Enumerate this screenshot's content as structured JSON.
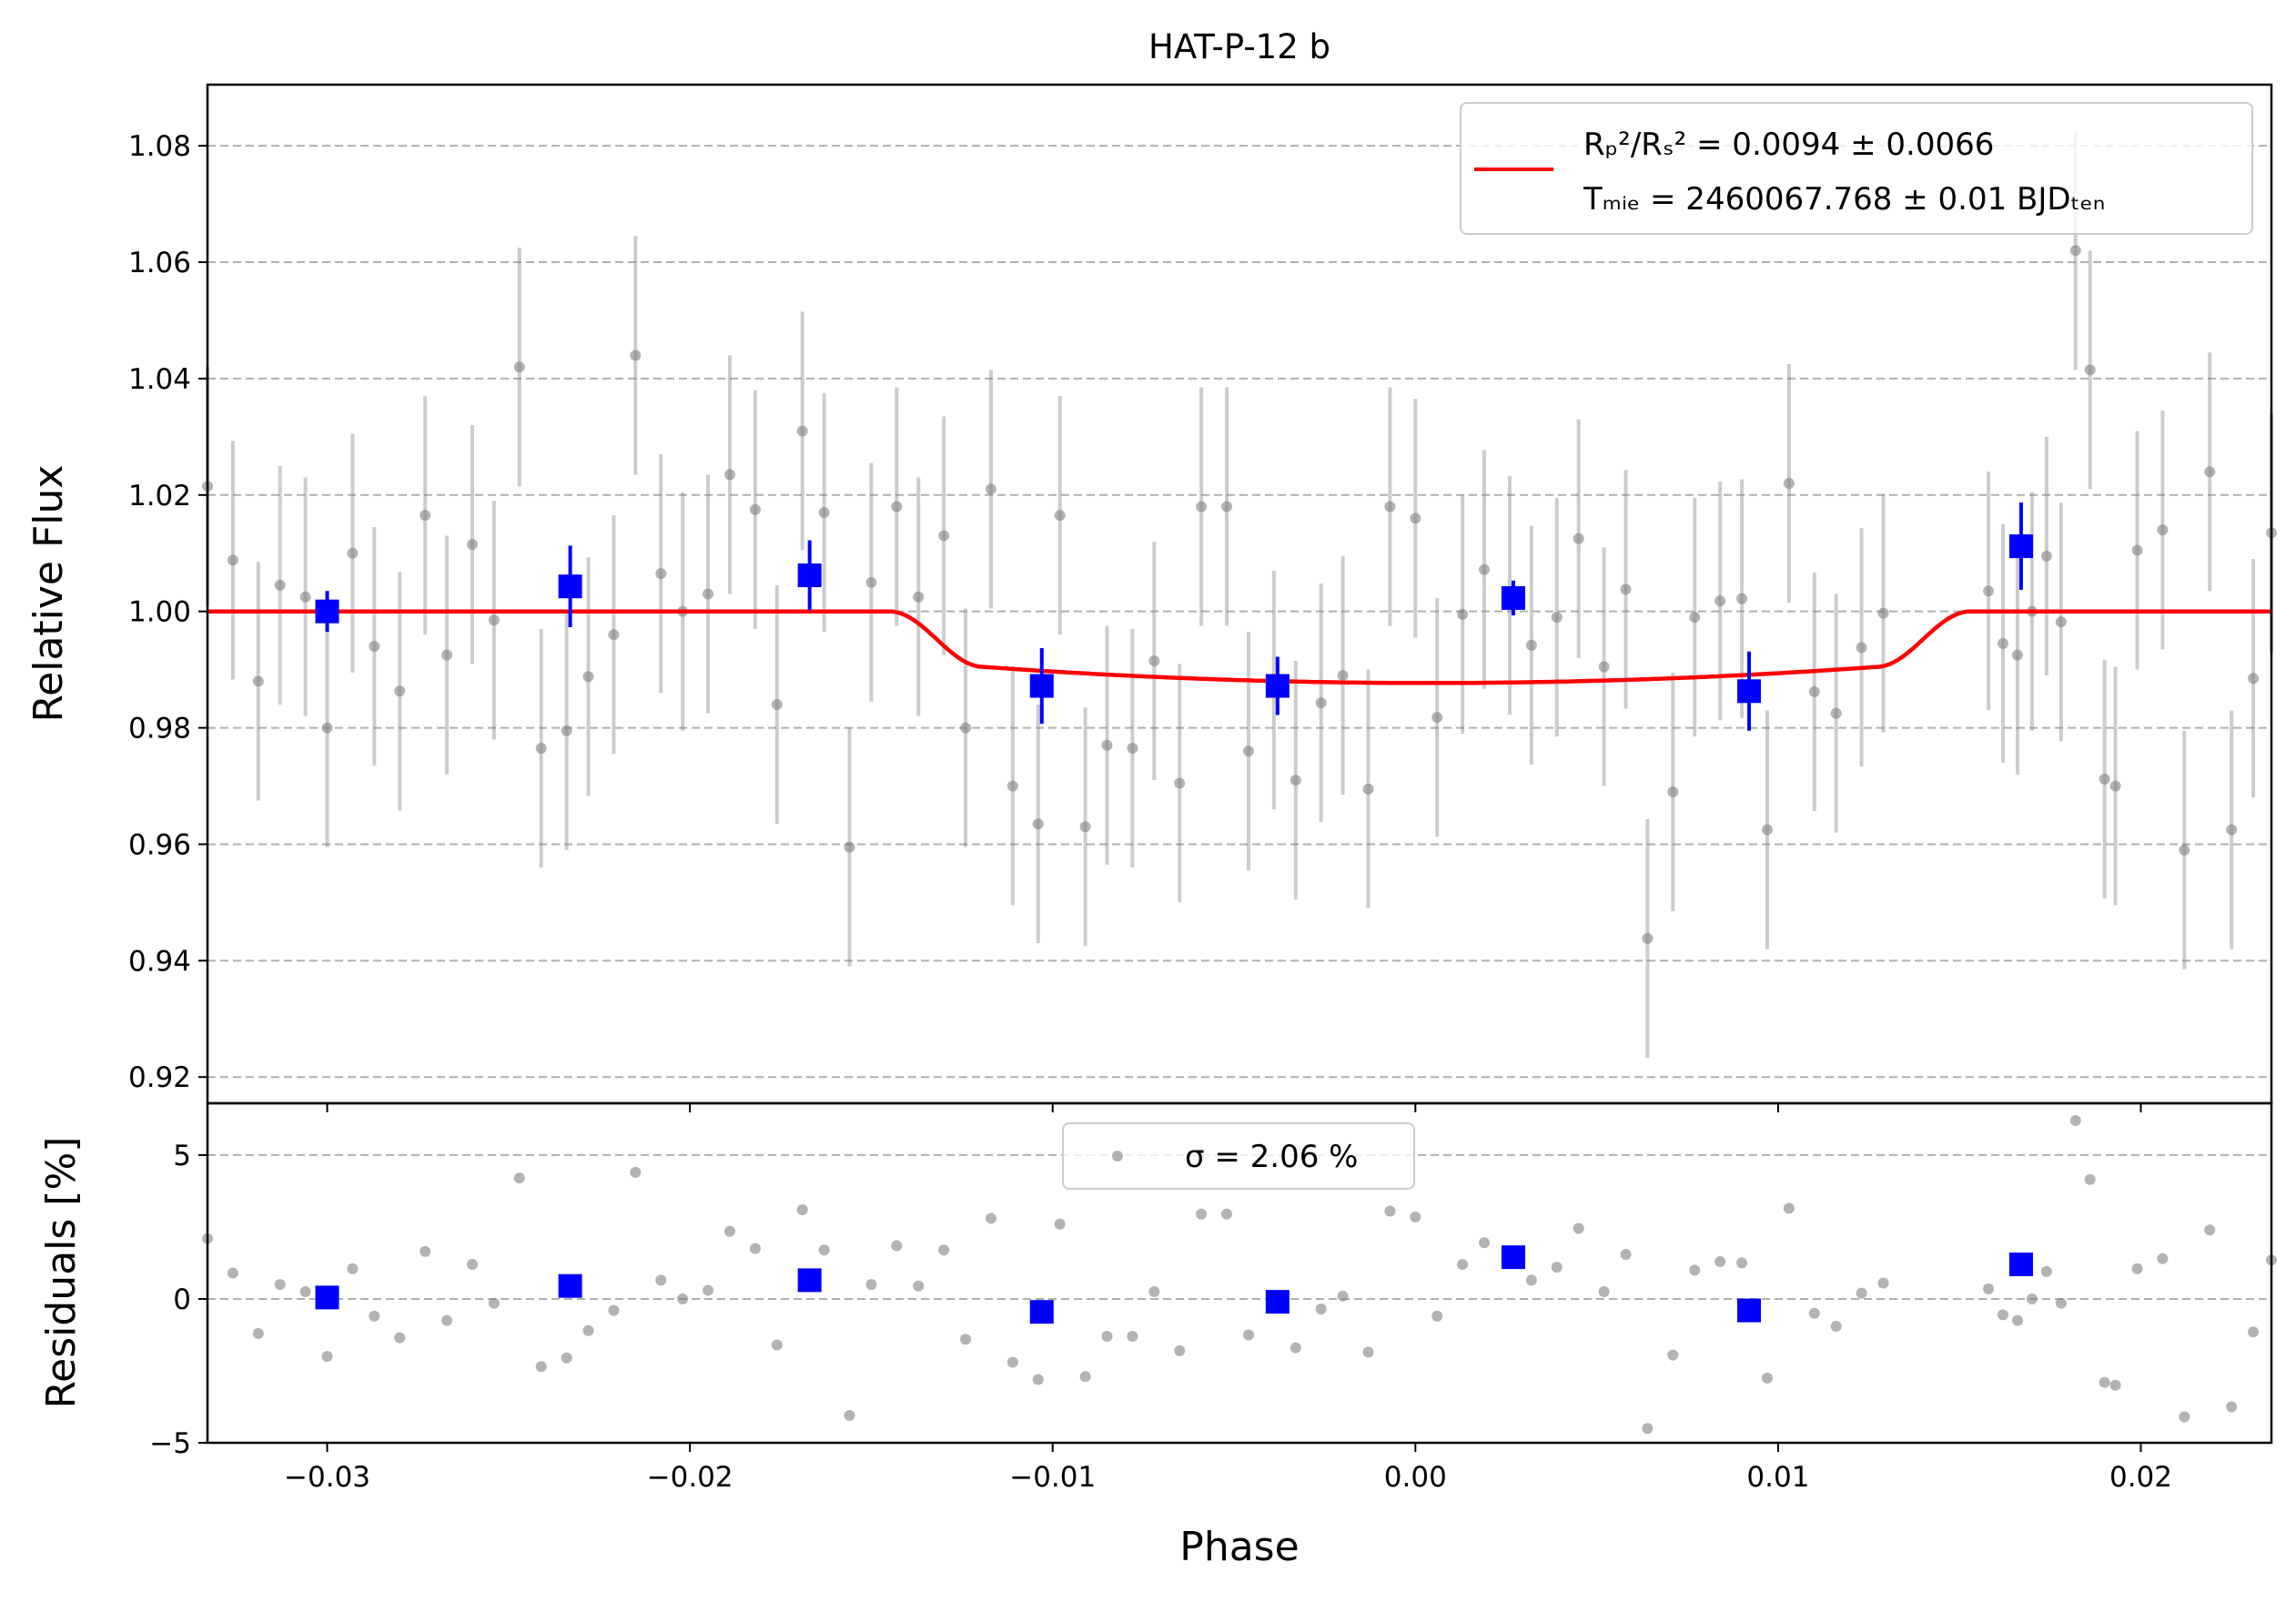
{
  "chart_data": [
    {
      "type": "scatter",
      "panel": "flux",
      "title": "HAT-P-12 b",
      "xlabel": "",
      "ylabel": "Relative Flux",
      "xlim": [
        -0.0333,
        0.0236
      ],
      "ylim": [
        0.9155,
        1.0905
      ],
      "x_ticks": [
        -0.03,
        -0.02,
        -0.01,
        0.0,
        0.01,
        0.02
      ],
      "y_ticks": [
        0.92,
        0.94,
        0.96,
        0.98,
        1.0,
        1.02,
        1.04,
        1.06,
        1.08
      ],
      "y_tick_labels": [
        "0.92",
        "0.94",
        "0.96",
        "0.98",
        "1.00",
        "1.02",
        "1.04",
        "1.06",
        "1.08"
      ],
      "grid": "y dashed",
      "legend_placement": "top-right",
      "legend": {
        "line1": "Rₚ²/Rₛ² = 0.0094 ± 0.0066",
        "line2": "Tₘᵢₑ = 2460067.768 ± 0.01 BJDₜₑₙ"
      },
      "model": {
        "color": "#ff0000",
        "baseline": 1.0,
        "depth": 0.0123,
        "t_full_in": -0.0123,
        "t_full_out": 0.0123,
        "t_contact_out": 0.0149,
        "center": 0.0004
      },
      "series": [
        {
          "kind": "raw",
          "color": "#808080",
          "yerr": 0.0205,
          "points": [
            [
              -0.0333,
              1.0215
            ],
            [
              -0.0326,
              1.0088
            ],
            [
              -0.0319,
              0.988
            ],
            [
              -0.0313,
              1.0045
            ],
            [
              -0.0306,
              1.0025
            ],
            [
              -0.03,
              0.98
            ],
            [
              -0.0293,
              1.01
            ],
            [
              -0.0287,
              0.994
            ],
            [
              -0.028,
              0.9863
            ],
            [
              -0.0273,
              1.0165
            ],
            [
              -0.0267,
              0.9925
            ],
            [
              -0.026,
              1.0115
            ],
            [
              -0.0254,
              0.9985
            ],
            [
              -0.0247,
              1.042
            ],
            [
              -0.0241,
              0.9765
            ],
            [
              -0.0234,
              0.9795
            ],
            [
              -0.0228,
              0.9888
            ],
            [
              -0.0221,
              0.996
            ],
            [
              -0.0215,
              1.044
            ],
            [
              -0.0208,
              1.0065
            ],
            [
              -0.0202,
              1.0
            ],
            [
              -0.0195,
              1.003
            ],
            [
              -0.0189,
              1.0235
            ],
            [
              -0.0182,
              1.0175
            ],
            [
              -0.0176,
              0.984
            ],
            [
              -0.0169,
              1.031
            ],
            [
              -0.0163,
              1.017
            ],
            [
              -0.0156,
              0.9595
            ],
            [
              -0.015,
              1.005
            ],
            [
              -0.0143,
              1.018
            ],
            [
              -0.0137,
              1.0025
            ],
            [
              -0.013,
              1.013
            ],
            [
              -0.0124,
              0.98
            ],
            [
              -0.0117,
              1.021
            ],
            [
              -0.0111,
              0.97
            ],
            [
              -0.0104,
              0.9635
            ],
            [
              -0.0098,
              1.0165
            ],
            [
              -0.0091,
              0.963
            ],
            [
              -0.0085,
              0.977
            ],
            [
              -0.0078,
              0.9765
            ],
            [
              -0.0072,
              0.9915
            ],
            [
              -0.0065,
              0.9705
            ],
            [
              -0.0059,
              1.018
            ],
            [
              -0.0052,
              1.018
            ],
            [
              -0.0046,
              0.976
            ],
            [
              -0.0039,
              0.9865
            ],
            [
              -0.0033,
              0.971
            ],
            [
              -0.0026,
              0.9843
            ],
            [
              -0.002,
              0.989
            ],
            [
              -0.0013,
              0.9695
            ],
            [
              -0.0007,
              1.018
            ],
            [
              0.0,
              1.016
            ],
            [
              0.0006,
              0.9818
            ],
            [
              0.0013,
              0.9995
            ],
            [
              0.0019,
              1.0072
            ],
            [
              0.0026,
              1.0028
            ],
            [
              0.0032,
              0.9942
            ],
            [
              0.0039,
              0.999
            ],
            [
              0.0045,
              1.0125
            ],
            [
              0.0052,
              0.9905
            ],
            [
              0.0058,
              1.0038
            ],
            [
              0.0064,
              0.9438
            ],
            [
              0.0071,
              0.969
            ],
            [
              0.0077,
              0.999
            ],
            [
              0.0084,
              1.0018
            ],
            [
              0.009,
              1.0022
            ],
            [
              0.0097,
              0.9625
            ],
            [
              0.0103,
              1.022
            ],
            [
              0.011,
              0.9862
            ],
            [
              0.0116,
              0.9825
            ],
            [
              0.0123,
              0.9938
            ],
            [
              0.0129,
              0.9997
            ],
            [
              0.0158,
              1.0035
            ],
            [
              0.0162,
              0.9945
            ],
            [
              0.0166,
              0.9925
            ],
            [
              0.017,
              1.0
            ],
            [
              0.0174,
              1.0095
            ],
            [
              0.0178,
              0.9982
            ],
            [
              0.0182,
              1.062
            ],
            [
              0.0186,
              1.0415
            ],
            [
              0.019,
              0.9712
            ],
            [
              0.0193,
              0.97
            ],
            [
              0.0199,
              1.0105
            ],
            [
              0.0206,
              1.014
            ],
            [
              0.0212,
              0.959
            ],
            [
              0.0219,
              1.024
            ],
            [
              0.0225,
              0.9625
            ],
            [
              0.0231,
              0.9885
            ],
            [
              0.0236,
              1.0135
            ]
          ]
        },
        {
          "kind": "binned",
          "color": "#0000ff",
          "points": [
            [
              -0.03,
              1.0,
              0.0035
            ],
            [
              -0.0233,
              1.0043,
              0.007
            ],
            [
              -0.0167,
              1.0062,
              0.006
            ],
            [
              -0.0103,
              0.9872,
              0.0065
            ],
            [
              -0.0038,
              0.9872,
              0.005
            ],
            [
              0.0027,
              1.0023,
              0.003
            ],
            [
              0.0092,
              0.9863,
              0.0068
            ],
            [
              0.0167,
              1.0112,
              0.0075
            ]
          ]
        }
      ]
    },
    {
      "type": "scatter",
      "panel": "residuals",
      "xlabel": "Phase",
      "ylabel": "Residuals [%]",
      "xlim": [
        -0.0333,
        0.0236
      ],
      "ylim": [
        -5.0,
        6.8
      ],
      "x_ticks": [
        -0.03,
        -0.02,
        -0.01,
        0.0,
        0.01,
        0.02
      ],
      "x_tick_labels": [
        "−0.03",
        "−0.02",
        "−0.01",
        "0.00",
        "0.01",
        "0.02"
      ],
      "y_ticks": [
        -5,
        0,
        5
      ],
      "y_tick_labels": [
        "−5",
        "0",
        "5"
      ],
      "grid": "y dashed",
      "legend_placement": "top-center",
      "legend": {
        "line1": "σ = 2.06 %"
      },
      "series": [
        {
          "kind": "raw",
          "color": "#808080",
          "points": [
            [
              -0.0333,
              2.1
            ],
            [
              -0.0326,
              0.9
            ],
            [
              -0.0319,
              -1.2
            ],
            [
              -0.0313,
              0.5
            ],
            [
              -0.0306,
              0.25
            ],
            [
              -0.03,
              -2.0
            ],
            [
              -0.0293,
              1.05
            ],
            [
              -0.0287,
              -0.6
            ],
            [
              -0.028,
              -1.35
            ],
            [
              -0.0273,
              1.65
            ],
            [
              -0.0267,
              -0.75
            ],
            [
              -0.026,
              1.2
            ],
            [
              -0.0254,
              -0.15
            ],
            [
              -0.0247,
              4.2
            ],
            [
              -0.0241,
              -2.35
            ],
            [
              -0.0234,
              -2.05
            ],
            [
              -0.0228,
              -1.1
            ],
            [
              -0.0221,
              -0.4
            ],
            [
              -0.0215,
              4.4
            ],
            [
              -0.0208,
              0.65
            ],
            [
              -0.0202,
              0.0
            ],
            [
              -0.0195,
              0.3
            ],
            [
              -0.0189,
              2.35
            ],
            [
              -0.0182,
              1.75
            ],
            [
              -0.0176,
              -1.6
            ],
            [
              -0.0169,
              3.1
            ],
            [
              -0.0163,
              1.7
            ],
            [
              -0.0156,
              -4.05
            ],
            [
              -0.015,
              0.5
            ],
            [
              -0.0143,
              1.85
            ],
            [
              -0.0137,
              0.45
            ],
            [
              -0.013,
              1.7
            ],
            [
              -0.0124,
              -1.4
            ],
            [
              -0.0117,
              2.8
            ],
            [
              -0.0111,
              -2.2
            ],
            [
              -0.0104,
              -2.8
            ],
            [
              -0.0098,
              2.6
            ],
            [
              -0.0091,
              -2.7
            ],
            [
              -0.0085,
              -1.3
            ],
            [
              -0.0078,
              -1.3
            ],
            [
              -0.0072,
              0.25
            ],
            [
              -0.0065,
              -1.8
            ],
            [
              -0.0059,
              2.95
            ],
            [
              -0.0052,
              2.95
            ],
            [
              -0.0046,
              -1.25
            ],
            [
              -0.0039,
              0.0
            ],
            [
              -0.0033,
              -1.7
            ],
            [
              -0.0026,
              -0.35
            ],
            [
              -0.002,
              0.1
            ],
            [
              -0.0013,
              -1.85
            ],
            [
              -0.0007,
              3.05
            ],
            [
              0.0,
              2.85
            ],
            [
              0.0006,
              -0.6
            ],
            [
              0.0013,
              1.2
            ],
            [
              0.0019,
              1.95
            ],
            [
              0.0026,
              1.5
            ],
            [
              0.0032,
              0.65
            ],
            [
              0.0039,
              1.1
            ],
            [
              0.0045,
              2.45
            ],
            [
              0.0052,
              0.25
            ],
            [
              0.0058,
              1.55
            ],
            [
              0.0064,
              -4.5
            ],
            [
              0.0071,
              -1.95
            ],
            [
              0.0077,
              1.0
            ],
            [
              0.0084,
              1.3
            ],
            [
              0.009,
              1.25
            ],
            [
              0.0097,
              -2.75
            ],
            [
              0.0103,
              3.15
            ],
            [
              0.011,
              -0.5
            ],
            [
              0.0116,
              -0.95
            ],
            [
              0.0123,
              0.2
            ],
            [
              0.0129,
              0.55
            ],
            [
              0.0158,
              0.35
            ],
            [
              0.0162,
              -0.55
            ],
            [
              0.0166,
              -0.75
            ],
            [
              0.017,
              0.0
            ],
            [
              0.0174,
              0.95
            ],
            [
              0.0178,
              -0.15
            ],
            [
              0.0182,
              6.2
            ],
            [
              0.0186,
              4.15
            ],
            [
              0.019,
              -2.9
            ],
            [
              0.0193,
              -3.0
            ],
            [
              0.0199,
              1.05
            ],
            [
              0.0206,
              1.4
            ],
            [
              0.0212,
              -4.1
            ],
            [
              0.0219,
              2.4
            ],
            [
              0.0225,
              -3.75
            ],
            [
              0.0231,
              -1.15
            ],
            [
              0.0236,
              1.35
            ]
          ]
        },
        {
          "kind": "binned",
          "color": "#0000ff",
          "points": [
            [
              -0.03,
              0.05
            ],
            [
              -0.0233,
              0.45
            ],
            [
              -0.0167,
              0.65
            ],
            [
              -0.0103,
              -0.45
            ],
            [
              -0.0038,
              -0.1
            ],
            [
              0.0027,
              1.45
            ],
            [
              0.0092,
              -0.4
            ],
            [
              0.0167,
              1.2
            ]
          ]
        }
      ]
    }
  ]
}
